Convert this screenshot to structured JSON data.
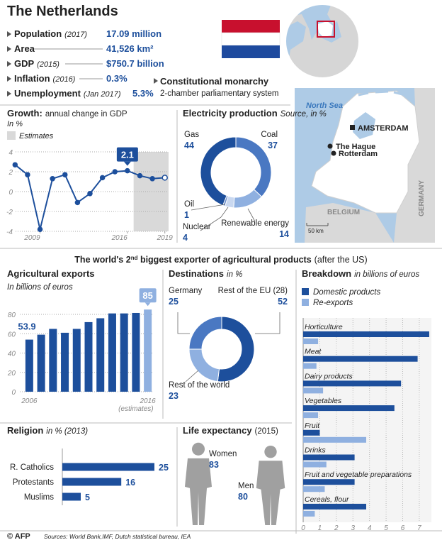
{
  "header": {
    "title": "The Netherlands",
    "facts": [
      {
        "label": "Population",
        "note": "(2017)",
        "value": "17.09 million"
      },
      {
        "label": "Area",
        "value": "41,526 km²"
      },
      {
        "label": "GDP",
        "note": "(2015)",
        "value": "$750.7 billion"
      },
      {
        "label": "Inflation",
        "note": "(2016)",
        "value": "0.3%"
      },
      {
        "label": "Unemployment",
        "note": "(Jan 2017)",
        "value": "5.3%"
      }
    ],
    "government": {
      "title": "Constitutional monarchy",
      "text": "2-chamber parliamentary system"
    }
  },
  "map": {
    "sea": "North Sea",
    "cities": [
      "AMSTERDAM",
      "The Hague",
      "Rotterdam"
    ],
    "countries": [
      "BELGIUM",
      "GERMANY"
    ],
    "scale": "50 km"
  },
  "section_title": {
    "text": "The world's 2",
    "sup": "nd",
    "rest": " biggest exporter of agricultural products",
    "note": "(after the US)"
  },
  "chart_data": [
    {
      "type": "line",
      "title": "Growth:",
      "subtitle": "annual change in GDP",
      "unit": "In %",
      "legend": "Estimates",
      "estimates_from": 2017,
      "highlight": 9,
      "x": [
        2007,
        2008,
        2009,
        2010,
        2011,
        2012,
        2013,
        2014,
        2015,
        2016,
        2017,
        2018,
        2019
      ],
      "series": [
        {
          "color": "#1d4f9c",
          "values": [
            2.7,
            1.7,
            -3.8,
            1.3,
            1.7,
            -1.1,
            -0.2,
            1.4,
            2.0,
            2.1,
            1.6,
            1.3,
            1.4
          ]
        }
      ],
      "xlim": [
        2006.7,
        2019.3
      ],
      "xticks": [
        2009,
        2016,
        2019
      ],
      "ylim": [
        -4,
        4
      ],
      "yticks": [
        -4,
        -2,
        0,
        2,
        4
      ],
      "grid": true
    },
    {
      "type": "donut",
      "title": "Electricity production",
      "subtitle": "Source, in %",
      "categories": [
        "Coal",
        "Renewable energy",
        "Nuclear",
        "Oil",
        "Gas"
      ],
      "values": [
        37,
        14,
        4,
        1,
        44
      ],
      "colors": [
        "#4a78c2",
        "#8fb0e0",
        "#c9d8f0",
        "#6d8fc9",
        "#1d4f9c"
      ]
    },
    {
      "type": "bar",
      "title": "Agricultural exports",
      "subtitle": "In billions of euros",
      "categories": [
        "2006",
        null,
        null,
        null,
        null,
        null,
        null,
        null,
        null,
        null,
        "2016"
      ],
      "values": [
        53.9,
        59,
        65,
        61,
        65,
        72,
        76,
        81,
        81,
        81.5,
        85
      ],
      "color": "#1d4f9c",
      "estimate_color": "#8fb0e0",
      "estimate_index": 10,
      "estimates_note": "(estimates)",
      "ylim": [
        0,
        90
      ],
      "yticks": [
        0,
        20,
        40,
        60,
        80
      ],
      "grid": true
    },
    {
      "type": "donut",
      "title": "Destinations",
      "subtitle": "in %",
      "categories": [
        "Rest of the EU (28)",
        "Rest of the world",
        "Germany"
      ],
      "values": [
        52,
        23,
        25
      ],
      "colors": [
        "#1d4f9c",
        "#8fb0e0",
        "#4a78c2"
      ]
    },
    {
      "type": "hbar",
      "title": "Breakdown",
      "subtitle": "in billions of euros",
      "categories": [
        "Horticulture",
        "Meat",
        "Dairy products",
        "Vegetables",
        "Fruit",
        "Drinks",
        "Fruit and vegetable preparations",
        "Cereals, flour"
      ],
      "series": [
        {
          "name": "Domestic products",
          "color": "#1d4f9c",
          "values": [
            7.6,
            6.9,
            5.9,
            5.5,
            1.0,
            3.1,
            3.1,
            3.8
          ]
        },
        {
          "name": "Re-exports",
          "color": "#8fb0e0",
          "values": [
            0.9,
            0.8,
            1.2,
            0.9,
            3.8,
            1.4,
            1.3,
            0.7
          ]
        }
      ],
      "xlim": [
        0,
        7.9
      ],
      "xticks": [
        0,
        1,
        2,
        3,
        4,
        5,
        6,
        7
      ],
      "grid": true
    },
    {
      "type": "rbar",
      "title": "Religion",
      "subtitle": "in % (2013)",
      "categories": [
        "R. Catholics",
        "Protestants",
        "Muslims"
      ],
      "values": [
        25,
        16,
        5
      ],
      "color": "#1d4f9c"
    },
    {
      "type": "pictogram",
      "title": "Life expectancy",
      "subtitle": "(2015)",
      "categories": [
        "Women",
        "Men"
      ],
      "values": [
        83,
        80
      ],
      "color": "#a0a0a0"
    }
  ],
  "footer": {
    "credit": "© AFP",
    "sources": "Sources: World Bank,IMF, Dutch statistical bureau, IEA"
  }
}
